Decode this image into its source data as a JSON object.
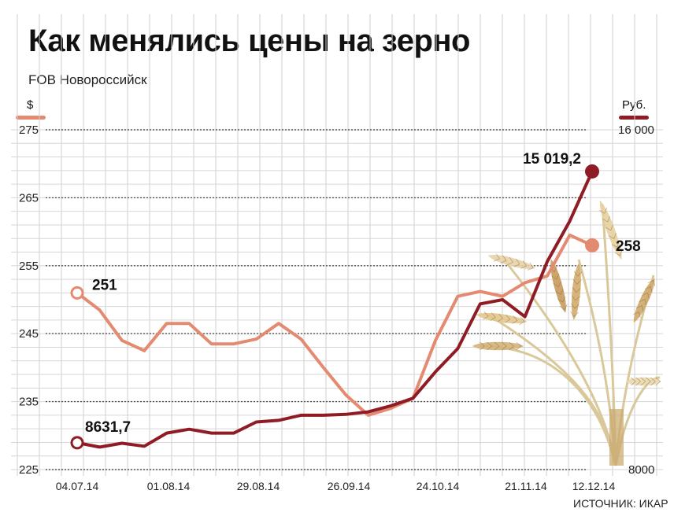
{
  "chart_data": {
    "type": "line",
    "title": "Как менялись цены на зерно",
    "subtitle": "FOB Новороссийск",
    "source": "ИСТОЧНИК: ИКАР",
    "x_ticks": [
      "04.07.14",
      "01.08.14",
      "29.08.14",
      "26.09.14",
      "24.10.14",
      "21.11.14",
      "12.12.14"
    ],
    "left_axis": {
      "label": "$",
      "ticks": [
        "275",
        "265",
        "255",
        "245",
        "235",
        "225"
      ],
      "ylim": [
        225,
        275
      ]
    },
    "right_axis": {
      "label": "Руб.",
      "ticks": [
        "16 000",
        "8000"
      ],
      "ylim": [
        8000,
        16000
      ]
    },
    "grid": true,
    "colors": {
      "usd": "#e48a70",
      "rub": "#8f1c24"
    },
    "series": [
      {
        "axis": "left",
        "values": [
          251,
          248.5,
          244,
          242.5,
          246.5,
          246.5,
          243.5,
          243.5,
          244.2,
          246.5,
          244.2,
          240,
          236,
          233,
          234,
          235.5,
          244,
          250.5,
          251.2,
          250.5,
          252.5,
          253.5,
          259.5,
          258
        ]
      },
      {
        "axis": "right",
        "values": [
          8631.7,
          8530,
          8620,
          8550,
          8860,
          8950,
          8860,
          8860,
          9120,
          9160,
          9280,
          9280,
          9300,
          9360,
          9500,
          9680,
          10300,
          10850,
          11900,
          12000,
          11600,
          12900,
          13850,
          15019.2
        ]
      }
    ],
    "annotations": [
      {
        "series": 0,
        "point": "first",
        "text": "251"
      },
      {
        "series": 0,
        "point": "last",
        "text": "258"
      },
      {
        "series": 1,
        "point": "first",
        "text": "8631,7"
      },
      {
        "series": 1,
        "point": "last",
        "text": "15 019,2"
      }
    ]
  }
}
